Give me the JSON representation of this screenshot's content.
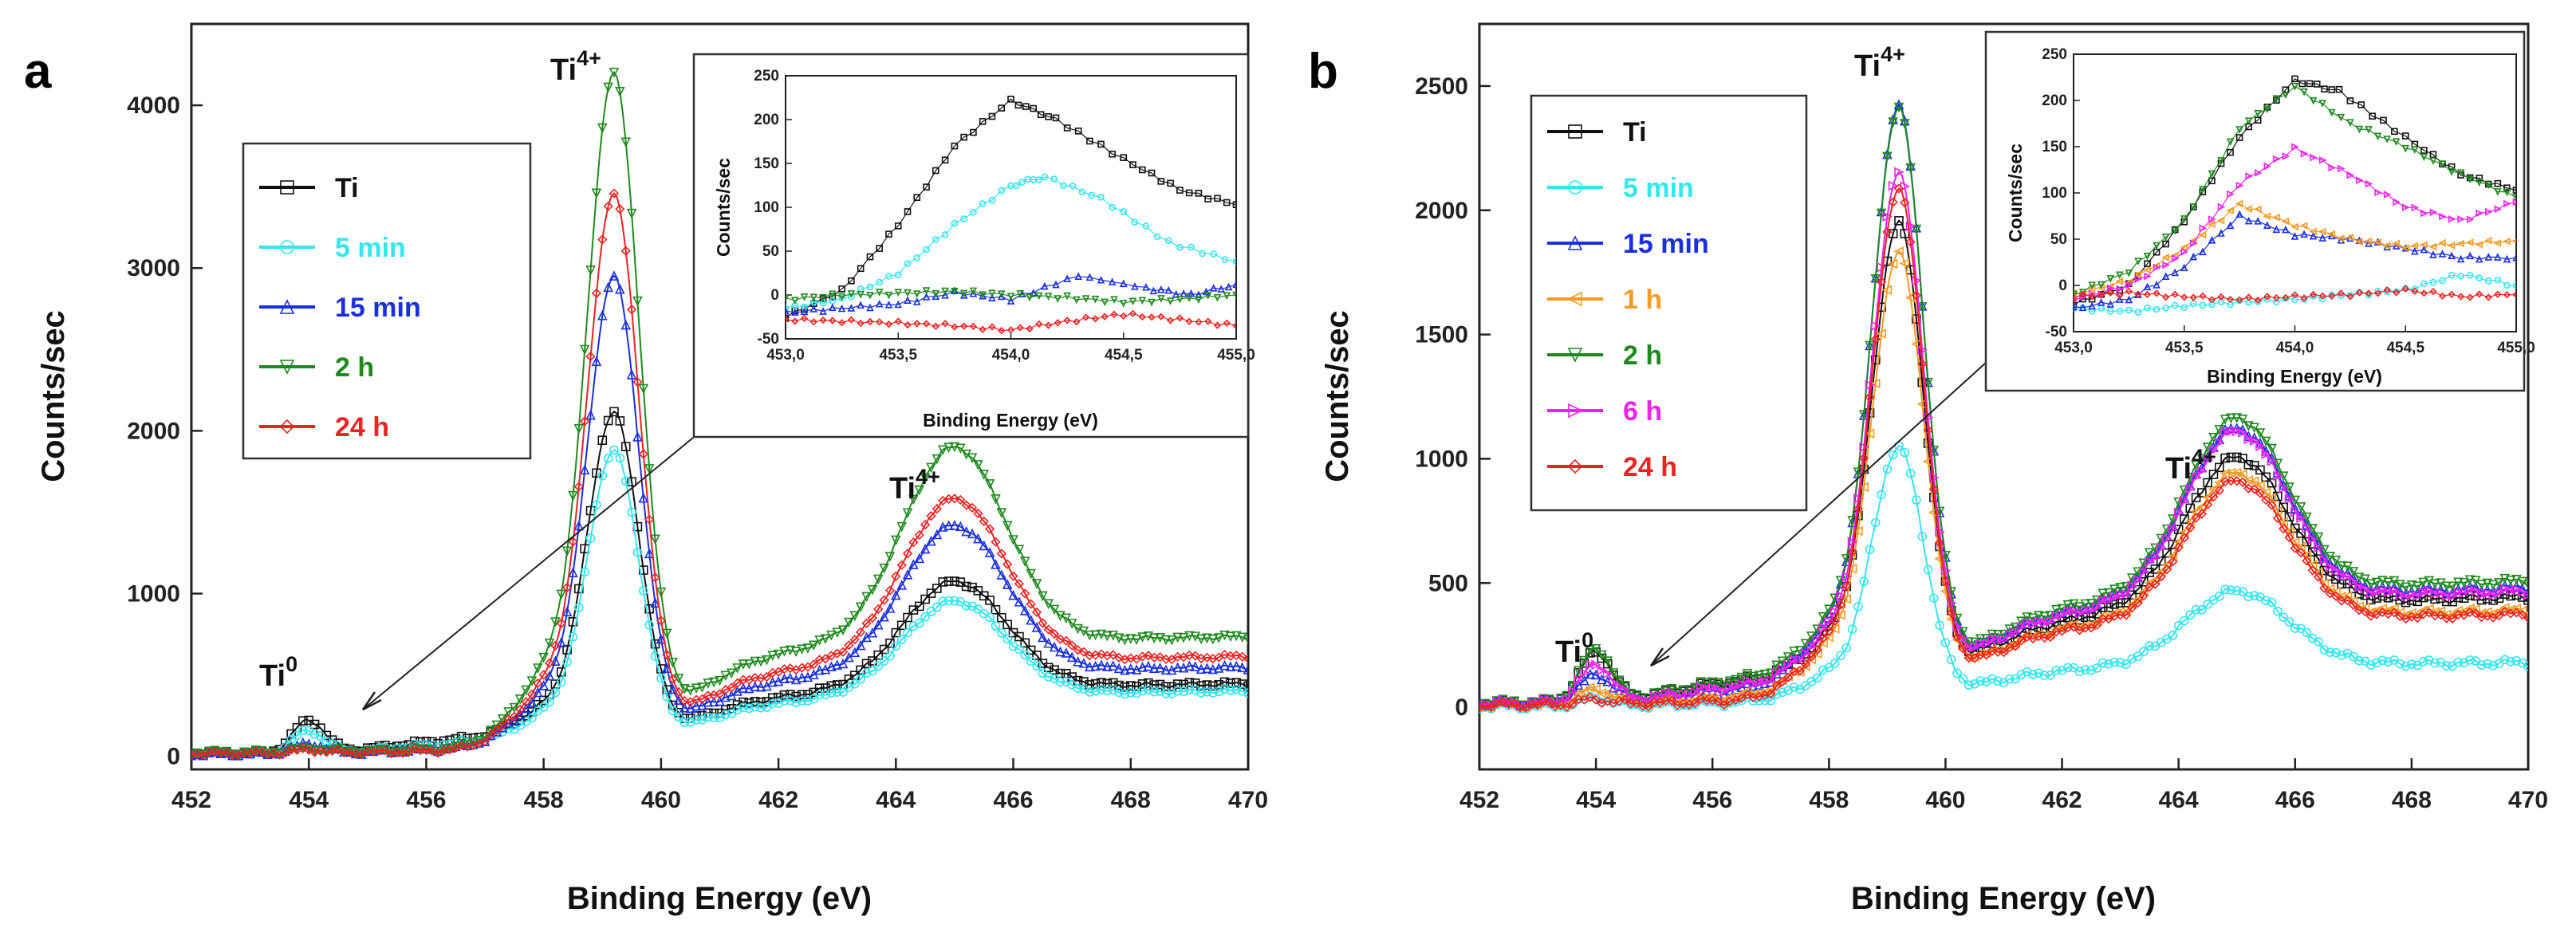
{
  "chart_data": [
    {
      "panel_label": "a",
      "type": "line",
      "xlabel": "Binding Energy (eV)",
      "ylabel": "Counts/sec",
      "xlim": [
        452,
        470
      ],
      "ylim": [
        -80,
        4500
      ],
      "xticks": [
        452,
        454,
        456,
        458,
        460,
        462,
        464,
        466,
        468,
        470
      ],
      "yticks": [
        0,
        1000,
        2000,
        3000,
        4000
      ],
      "legend": "upper-left",
      "annotations": [
        "Ti0",
        "Ti4+",
        "Ti4+"
      ],
      "annotation_text": {
        "ti0": {
          "base": "Ti",
          "sup": "0"
        },
        "ti4a": {
          "base": "Ti",
          "sup": "4+"
        },
        "ti4b": {
          "base": "Ti",
          "sup": "4+"
        }
      },
      "series": [
        {
          "name": "Ti",
          "color": "#111111",
          "marker": "square",
          "params": [
            200,
            1960,
            660,
            650,
            300,
            280
          ]
        },
        {
          "name": "5 min",
          "color": "#33e6f0",
          "marker": "circle",
          "params": [
            140,
            1740,
            580,
            580,
            270,
            260
          ]
        },
        {
          "name": "15 min",
          "color": "#1a2fe0",
          "marker": "triangle-up",
          "params": [
            60,
            2760,
            900,
            900,
            280,
            260
          ]
        },
        {
          "name": "2 h",
          "color": "#1e8a1e",
          "marker": "triangle-down",
          "params": [
            20,
            3940,
            1200,
            1250,
            460,
            300
          ]
        },
        {
          "name": "24 h",
          "color": "#ee2222",
          "marker": "diamond",
          "params": [
            20,
            3240,
            1000,
            1020,
            330,
            280
          ]
        }
      ],
      "inset": {
        "xlabel": "Binding Energy (eV)",
        "ylabel": "Counts/sec",
        "xlim": [
          453.0,
          455.0
        ],
        "ylim": [
          -50,
          250
        ],
        "xticks": [
          "453,0",
          "453,5",
          "454,0",
          "454,5",
          "455,0"
        ],
        "yticks": [
          -50,
          0,
          50,
          100,
          150,
          200,
          250
        ],
        "series": [
          {
            "name": "Ti",
            "x": [
              453.0,
              453.25,
              453.5,
              453.75,
              454.0,
              454.2,
              454.5,
              454.75,
              455.0
            ],
            "y": [
              -25,
              5,
              80,
              170,
              222,
              200,
              155,
              120,
              103
            ]
          },
          {
            "name": "5 min",
            "x": [
              453.0,
              453.25,
              453.5,
              453.75,
              454.0,
              454.15,
              454.4,
              454.7,
              455.0
            ],
            "y": [
              -15,
              -5,
              25,
              80,
              125,
              135,
              110,
              60,
              38
            ]
          },
          {
            "name": "15 min",
            "x": [
              453.0,
              453.25,
              453.5,
              453.75,
              454.0,
              454.3,
              454.6,
              454.8,
              455.0
            ],
            "y": [
              -20,
              -15,
              -10,
              3,
              -5,
              22,
              8,
              0,
              12
            ]
          },
          {
            "name": "2 h",
            "x": [
              453.0,
              453.25,
              453.5,
              453.75,
              454.0,
              454.25,
              454.5,
              454.75,
              455.0
            ],
            "y": [
              -5,
              0,
              2,
              4,
              0,
              -3,
              -8,
              -5,
              0
            ]
          },
          {
            "name": "24 h",
            "x": [
              453.0,
              453.25,
              453.5,
              453.75,
              454.0,
              454.25,
              454.5,
              454.75,
              455.0
            ],
            "y": [
              -28,
              -30,
              -32,
              -35,
              -40,
              -30,
              -22,
              -28,
              -35
            ]
          }
        ]
      }
    },
    {
      "panel_label": "b",
      "type": "line",
      "xlabel": "Binding Energy (eV)",
      "ylabel": "Counts/sec",
      "xlim": [
        452,
        470
      ],
      "ylim": [
        -250,
        2750
      ],
      "xticks": [
        452,
        454,
        456,
        458,
        460,
        462,
        464,
        466,
        468,
        470
      ],
      "yticks": [
        0,
        500,
        1000,
        1500,
        2000,
        2500
      ],
      "legend": "upper-left",
      "annotations": [
        "Ti0",
        "Ti4+",
        "Ti4+"
      ],
      "annotation_text": {
        "ti0": {
          "base": "Ti",
          "sup": "0"
        },
        "ti4a": {
          "base": "Ti",
          "sup": "4+"
        },
        "ti4b": {
          "base": "Ti",
          "sup": "4+"
        }
      },
      "series": [
        {
          "name": "Ti",
          "color": "#111111",
          "marker": "square",
          "params": [
            200,
            1800,
            600,
            560,
            300,
            360
          ]
        },
        {
          "name": "5 min",
          "color": "#33e6f0",
          "marker": "circle",
          "params": [
            30,
            980,
            300,
            270,
            80,
            110
          ]
        },
        {
          "name": "15 min",
          "color": "#1a2fe0",
          "marker": "triangle-up",
          "params": [
            110,
            2250,
            680,
            650,
            300,
            350
          ]
        },
        {
          "name": "1 h",
          "color": "#f59a22",
          "marker": "triangle-left",
          "params": [
            60,
            1700,
            580,
            570,
            200,
            250
          ]
        },
        {
          "name": "2 h",
          "color": "#1e8a1e",
          "marker": "triangle-down",
          "params": [
            210,
            2230,
            700,
            650,
            350,
            400
          ]
        },
        {
          "name": "6 h",
          "color": "#ee22ee",
          "marker": "triangle-right",
          "params": [
            150,
            1990,
            680,
            640,
            300,
            330
          ]
        },
        {
          "name": "24 h",
          "color": "#ee2222",
          "marker": "diamond",
          "params": [
            20,
            1950,
            560,
            570,
            170,
            220
          ]
        }
      ],
      "inset": {
        "xlabel": "Binding Energy (eV)",
        "ylabel": "Counts/sec",
        "xlim": [
          453.0,
          455.0
        ],
        "ylim": [
          -50,
          250
        ],
        "xticks": [
          "453,0",
          "453,5",
          "454,0",
          "454,5",
          "455,0"
        ],
        "yticks": [
          -50,
          0,
          50,
          100,
          150,
          200,
          250
        ],
        "series": [
          {
            "name": "Ti",
            "x": [
              453.0,
              453.25,
              453.5,
              453.75,
              454.0,
              454.2,
              454.5,
              454.75,
              455.0
            ],
            "y": [
              -20,
              0,
              70,
              160,
              222,
              210,
              160,
              120,
              103
            ]
          },
          {
            "name": "5 min",
            "x": [
              453.0,
              453.25,
              453.5,
              453.75,
              454.0,
              454.25,
              454.5,
              454.75,
              455.0
            ],
            "y": [
              -25,
              -28,
              -22,
              -18,
              -15,
              -10,
              -5,
              12,
              0
            ]
          },
          {
            "name": "15 min",
            "x": [
              453.0,
              453.25,
              453.5,
              453.75,
              454.0,
              454.25,
              454.5,
              454.75,
              455.0
            ],
            "y": [
              -25,
              -15,
              20,
              75,
              55,
              50,
              40,
              30,
              30
            ]
          },
          {
            "name": "1 h",
            "x": [
              453.0,
              453.25,
              453.5,
              453.75,
              454.0,
              454.25,
              454.5,
              454.75,
              455.0
            ],
            "y": [
              -10,
              5,
              40,
              88,
              65,
              50,
              42,
              45,
              48
            ]
          },
          {
            "name": "2 h",
            "x": [
              453.0,
              453.25,
              453.5,
              453.75,
              454.0,
              454.25,
              454.5,
              454.75,
              455.0
            ],
            "y": [
              -10,
              15,
              70,
              170,
              215,
              175,
              150,
              120,
              95
            ]
          },
          {
            "name": "6 h",
            "x": [
              453.0,
              453.25,
              453.5,
              453.75,
              454.0,
              454.25,
              454.5,
              454.75,
              455.0
            ],
            "y": [
              -15,
              0,
              35,
              110,
              148,
              120,
              85,
              70,
              90
            ]
          },
          {
            "name": "24 h",
            "x": [
              453.0,
              453.25,
              453.5,
              453.75,
              454.0,
              454.25,
              454.5,
              454.75,
              455.0
            ],
            "y": [
              -12,
              -8,
              -12,
              -15,
              -12,
              -10,
              -5,
              -12,
              -10
            ]
          }
        ]
      }
    }
  ]
}
